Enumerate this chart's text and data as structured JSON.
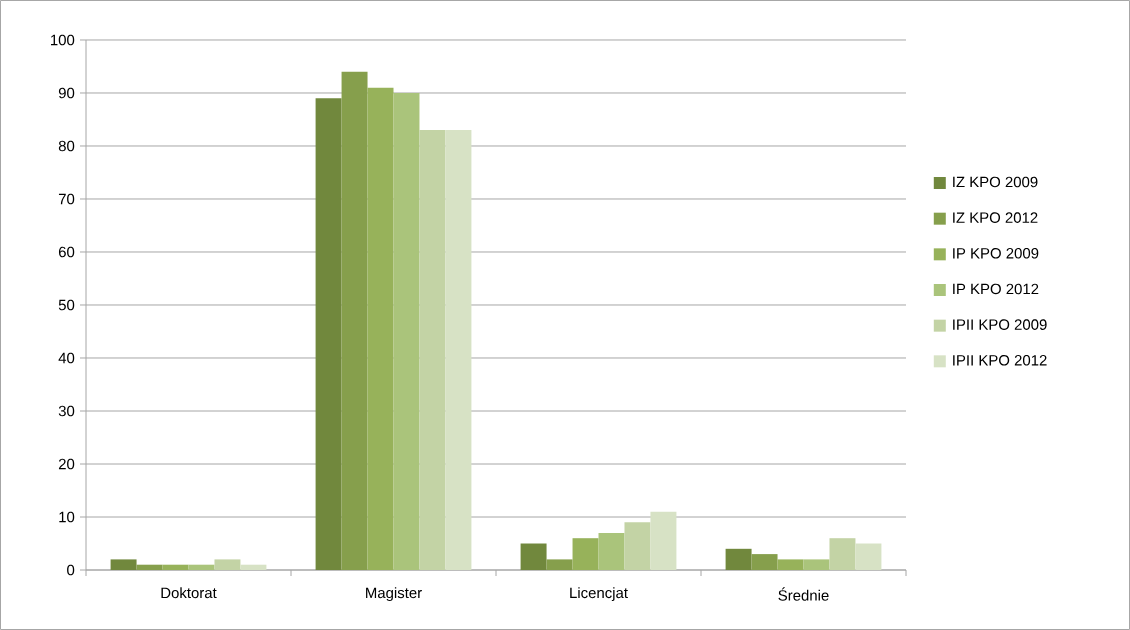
{
  "chart_data": {
    "type": "bar",
    "categories": [
      "Doktorat",
      "Magister",
      "Licencjat",
      "Średnie"
    ],
    "series": [
      {
        "name": "IZ KPO 2009",
        "color": "#71883d",
        "values": [
          2,
          89,
          5,
          4
        ]
      },
      {
        "name": "IZ KPO 2012",
        "color": "#869f4c",
        "values": [
          1,
          94,
          2,
          3
        ]
      },
      {
        "name": "IP KPO 2009",
        "color": "#97b25a",
        "values": [
          1,
          91,
          6,
          2
        ]
      },
      {
        "name": "IP KPO 2012",
        "color": "#aac47b",
        "values": [
          1,
          90,
          7,
          2
        ]
      },
      {
        "name": "IPII KPO 2009",
        "color": "#c3d3a5",
        "values": [
          2,
          83,
          9,
          6
        ]
      },
      {
        "name": "IPII KPO 2012",
        "color": "#d7e2c5",
        "values": [
          1,
          83,
          11,
          5
        ]
      }
    ],
    "ylim": [
      0,
      100
    ],
    "yticks": [
      0,
      10,
      20,
      30,
      40,
      50,
      60,
      70,
      80,
      90,
      100
    ],
    "grid": "y",
    "legend": "right"
  }
}
